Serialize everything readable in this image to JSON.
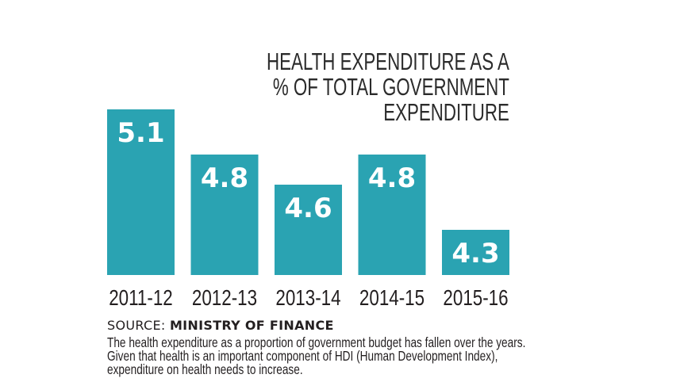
{
  "chart_data": {
    "type": "bar",
    "title": "HEALTH EXPENDITURE AS A % OF TOTAL GOVERNMENT EXPENDITURE",
    "title_lines": [
      "HEALTH EXPENDITURE AS A",
      "% OF TOTAL GOVERNMENT",
      "EXPENDITURE"
    ],
    "categories": [
      "2011-12",
      "2012-13",
      "2013-14",
      "2014-15",
      "2015-16"
    ],
    "values": [
      5.1,
      4.8,
      4.6,
      4.8,
      4.3
    ],
    "value_labels": [
      "5.1",
      "4.8",
      "4.6",
      "4.8",
      "4.3"
    ],
    "xlabel": "",
    "ylabel": "",
    "grid": false,
    "bar_color": "#2aa3b2"
  },
  "source": {
    "label": "SOURCE:",
    "name": "MINISTRY OF FINANCE"
  },
  "note": "The health expenditure as a proportion of government budget has fallen over the years. Given that health is an important component of HDI (Human Development Index), expenditure on health needs to increase."
}
